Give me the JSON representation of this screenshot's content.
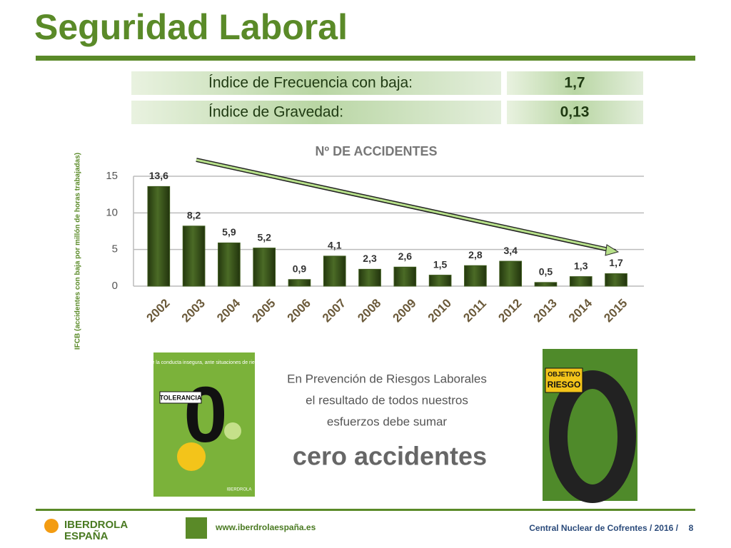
{
  "header": {
    "title": "Seguridad Laboral"
  },
  "indices": {
    "rows": [
      [
        "Índice de Frecuencia con baja:",
        "1,7"
      ],
      [
        "Índice de Gravedad:",
        "0,13"
      ]
    ]
  },
  "chart_data": {
    "type": "bar",
    "title": "Nº DE ACCIDENTES",
    "y_label": "IFCB (accidentes con baja por millón de horas trabajadas)",
    "categories": [
      "2002",
      "2003",
      "2004",
      "2005",
      "2006",
      "2007",
      "2008",
      "2009",
      "2010",
      "2011",
      "2012",
      "2013",
      "2014",
      "2015"
    ],
    "values": [
      13.6,
      8.2,
      5.9,
      5.2,
      0.9,
      4.1,
      2.3,
      2.6,
      1.5,
      2.8,
      3.4,
      0.5,
      1.3,
      1.7
    ],
    "value_labels": [
      "13,6",
      "8,2",
      "5,9",
      "5,2",
      "0,9",
      "4,1",
      "2,3",
      "2,6",
      "1,5",
      "2,8",
      "3,4",
      "0,5",
      "1,3",
      "1,7"
    ],
    "color": "#3d5a1c",
    "ylim": [
      0,
      15
    ],
    "yticks": [
      0,
      5,
      10,
      15
    ],
    "grid": true
  },
  "posters": {
    "left": {
      "caption": "Ante la conducta insegura, ante situaciones de riesgo:",
      "badge": "TOLERANCIA",
      "digit": "0",
      "brand": "IBERDROLA"
    },
    "right": {
      "badge_top": "OBJETIVO",
      "badge_bottom": "RIESGO",
      "digit": "0"
    }
  },
  "message": {
    "lines": [
      "En Prevención de Riesgos Laborales",
      "el resultado de todos nuestros",
      "esfuerzos debe sumar"
    ],
    "highlight": "cero accidentes"
  },
  "footer": {
    "brand": "IBERDROLA",
    "brand_sub": "ESPAÑA",
    "url": "www.iberdrolaespaña.es",
    "source": "Central Nuclear de Cofrentes / 2016 /",
    "page": "8"
  }
}
